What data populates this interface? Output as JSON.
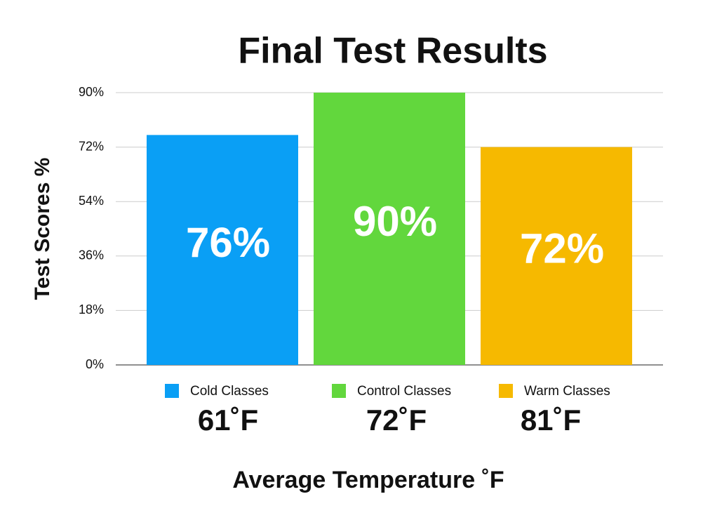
{
  "chart_data": {
    "type": "bar",
    "title": "Final Test Results",
    "y_label": "Test Scores %",
    "x_label": "Average Temperature ˚F",
    "categories": [
      "61˚F",
      "72˚F",
      "81˚F"
    ],
    "series": [
      {
        "name": "Cold Classes",
        "color": "#0a9ff5",
        "values": [
          76,
          null,
          null
        ],
        "value_labels": [
          "76%",
          null,
          null
        ]
      },
      {
        "name": "Control Classes",
        "color": "#62d73d",
        "values": [
          null,
          90,
          null
        ],
        "value_labels": [
          null,
          "90%",
          null
        ]
      },
      {
        "name": "Warm Classes",
        "color": "#f6b900",
        "values": [
          null,
          null,
          72
        ],
        "value_labels": [
          null,
          null,
          "72%"
        ]
      }
    ],
    "ylim": [
      0,
      90
    ],
    "yticks": [
      {
        "value": 0,
        "label": "0%"
      },
      {
        "value": 18,
        "label": "18%"
      },
      {
        "value": 36,
        "label": "36%"
      },
      {
        "value": 54,
        "label": "54%"
      },
      {
        "value": 72,
        "label": "72%"
      },
      {
        "value": 90,
        "label": "90%"
      }
    ],
    "grid": true
  }
}
